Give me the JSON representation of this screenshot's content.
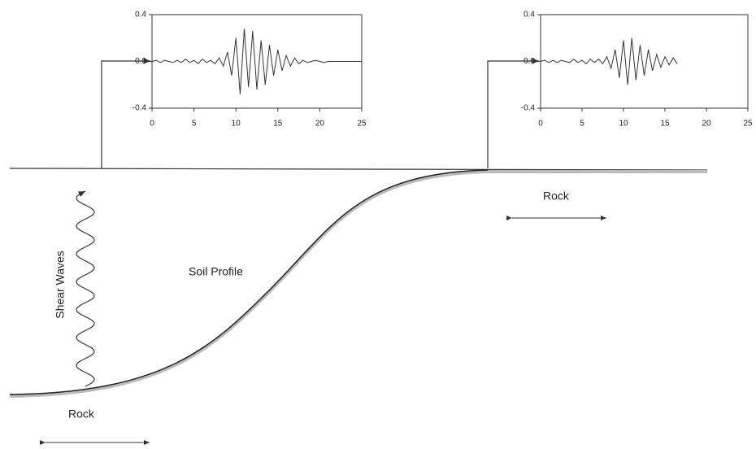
{
  "labels": {
    "soil_profile": "Soil Profile",
    "shear_waves": "Shear Waves",
    "rock_right": "Rock",
    "rock_left": "Rock"
  },
  "chart_data": [
    {
      "type": "line",
      "color": "#333333",
      "xlim": [
        0,
        25
      ],
      "ylim": [
        -0.4,
        0.4
      ],
      "xticks": [
        0,
        5,
        10,
        15,
        20,
        25
      ],
      "yticks": [
        0.4,
        {
          "value": 0,
          "label": "0.0"
        },
        -0.4
      ],
      "x": [
        0,
        0.5,
        1,
        1.5,
        2,
        2.5,
        3,
        3.5,
        4,
        4.5,
        5,
        5.5,
        6,
        6.5,
        7,
        7.5,
        8,
        8.5,
        9,
        9.5,
        10,
        10.5,
        11,
        11.5,
        12,
        12.5,
        13,
        13.5,
        14,
        14.5,
        15,
        15.5,
        16,
        16.5,
        17,
        17.5,
        18,
        18.5,
        19,
        19.5,
        20,
        20.5,
        21,
        21.5,
        22,
        22.5,
        23,
        23.5,
        24,
        24.5,
        25
      ],
      "values": [
        0,
        0.01,
        -0.01,
        0.01,
        0,
        -0.01,
        0.01,
        -0.01,
        0.02,
        -0.01,
        0.01,
        -0.02,
        0.02,
        -0.01,
        0.01,
        -0.02,
        0.03,
        -0.04,
        0.08,
        -0.12,
        0.2,
        -0.28,
        0.28,
        -0.22,
        0.26,
        -0.24,
        0.18,
        -0.2,
        0.14,
        -0.12,
        0.1,
        -0.08,
        0.05,
        -0.04,
        0.03,
        -0.02,
        0.01,
        -0.01,
        0,
        0.01,
        0,
        -0.01,
        0,
        0,
        0,
        0,
        0,
        0,
        0,
        0,
        0
      ]
    },
    {
      "type": "line",
      "color": "#333333",
      "xlim": [
        0,
        25
      ],
      "ylim": [
        -0.4,
        0.4
      ],
      "xticks": [
        0,
        5,
        10,
        15,
        20,
        25
      ],
      "yticks": [
        0.4,
        {
          "value": 0,
          "label": "0.0"
        },
        -0.4
      ],
      "x": [
        0,
        0.5,
        1,
        1.5,
        2,
        2.5,
        3,
        3.5,
        4,
        4.5,
        5,
        5.5,
        6,
        6.5,
        7,
        7.5,
        8,
        8.5,
        9,
        9.5,
        10,
        10.5,
        11,
        11.5,
        12,
        12.5,
        13,
        13.5,
        14,
        14.5,
        15,
        15.5,
        16,
        16.5
      ],
      "values": [
        0,
        0.01,
        -0.01,
        0.01,
        -0.01,
        0.01,
        0,
        -0.01,
        0.02,
        -0.01,
        0.01,
        -0.02,
        0.02,
        -0.01,
        0.02,
        -0.02,
        0.04,
        -0.06,
        0.1,
        -0.14,
        0.18,
        -0.2,
        0.2,
        -0.16,
        0.14,
        -0.12,
        0.1,
        -0.08,
        0.06,
        -0.05,
        0.04,
        -0.03,
        0.03,
        -0.02
      ]
    }
  ]
}
